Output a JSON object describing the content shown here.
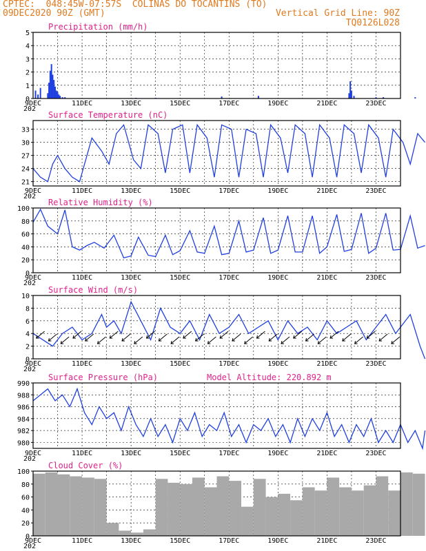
{
  "header": {
    "line1": "CPTEC:  048:45W-07:57S  COLINAS DO TOCANTINS (TO)",
    "line2_left": "09DEC2020 90Z (GMT)",
    "line2_right": "Vertical Grid Line: 90Z",
    "line3_right": "TQ0126L028"
  },
  "x_axis": {
    "tick_labels": [
      "9DEC",
      "11DEC",
      "13DEC",
      "15DEC",
      "17DEC",
      "19DEC",
      "21DEC",
      "23DEC"
    ],
    "year_fragment": "202"
  },
  "colors": {
    "title": "#e0218a",
    "header": "#e07a1f",
    "line": "#1f3fe0",
    "cloud": "#a9a9a9",
    "grid": "#000000"
  },
  "chart_data": [
    {
      "type": "bar",
      "title": "Precipitation (mm/h)",
      "ylim": [
        0,
        5
      ],
      "yticks": [
        0,
        1,
        2,
        3,
        4,
        5
      ],
      "x_units": "days since 9DEC (hourly bars)",
      "x": [
        0.1,
        0.2,
        0.3,
        0.6,
        0.65,
        0.7,
        0.75,
        0.8,
        0.85,
        0.9,
        0.95,
        1.0,
        1.05,
        1.1,
        1.2,
        1.3,
        4.2,
        5.0,
        7.7,
        9.2,
        12.9,
        12.95,
        13.0,
        13.1,
        14.0,
        14.3,
        15.6
      ],
      "values": [
        0.6,
        0.3,
        0.8,
        0.4,
        1.2,
        2.1,
        2.6,
        1.8,
        1.4,
        0.9,
        0.6,
        0.5,
        0.3,
        0.2,
        0.1,
        0.1,
        0.05,
        0.05,
        0.15,
        0.2,
        0.4,
        1.3,
        0.6,
        0.2,
        0.1,
        0.1,
        0.1
      ]
    },
    {
      "type": "line",
      "title": "Surface Temperature (nC)",
      "ylim": [
        20,
        35
      ],
      "yticks": [
        21,
        24,
        27,
        30,
        33
      ],
      "x": [
        0,
        0.3,
        0.6,
        0.8,
        1.0,
        1.3,
        1.6,
        1.9,
        2.1,
        2.4,
        2.8,
        3.1,
        3.4,
        3.7,
        4.1,
        4.4,
        4.7,
        5.1,
        5.4,
        5.7,
        6.1,
        6.4,
        6.7,
        7.1,
        7.4,
        7.7,
        8.1,
        8.4,
        8.7,
        9.1,
        9.4,
        9.7,
        10.1,
        10.4,
        10.7,
        11.1,
        11.4,
        11.7,
        12.1,
        12.4,
        12.7,
        13.1,
        13.4,
        13.7,
        14.1,
        14.4,
        14.7,
        15.1,
        15.4,
        15.7,
        16.0
      ],
      "values": [
        24,
        22,
        21,
        25,
        27,
        24,
        22,
        21,
        25,
        31,
        28,
        25,
        32,
        34,
        26,
        24,
        34,
        32,
        23,
        33,
        34,
        23,
        34,
        31,
        22,
        34,
        33,
        22,
        33,
        32,
        22,
        34,
        31,
        23,
        34,
        32,
        22,
        34,
        31,
        22,
        34,
        32,
        23,
        34,
        31,
        22,
        33,
        30,
        25,
        32,
        30
      ]
    },
    {
      "type": "line",
      "title": "Relative Humidity (%)",
      "ylim": [
        0,
        100
      ],
      "yticks": [
        0,
        20,
        40,
        60,
        80,
        100
      ],
      "x": [
        0,
        0.3,
        0.6,
        1.0,
        1.3,
        1.6,
        1.9,
        2.2,
        2.5,
        2.9,
        3.3,
        3.7,
        4.0,
        4.3,
        4.7,
        5.0,
        5.4,
        5.7,
        6.0,
        6.4,
        6.7,
        7.0,
        7.4,
        7.7,
        8.0,
        8.4,
        8.7,
        9.0,
        9.4,
        9.7,
        10.0,
        10.4,
        10.7,
        11.0,
        11.4,
        11.7,
        12.0,
        12.4,
        12.7,
        13.0,
        13.4,
        13.7,
        14.0,
        14.4,
        14.7,
        15.0,
        15.4,
        15.7,
        16.0
      ],
      "values": [
        78,
        98,
        72,
        60,
        97,
        40,
        35,
        42,
        47,
        38,
        58,
        23,
        26,
        55,
        27,
        25,
        58,
        28,
        34,
        65,
        32,
        30,
        72,
        28,
        30,
        80,
        32,
        35,
        85,
        30,
        35,
        88,
        32,
        32,
        88,
        30,
        40,
        90,
        33,
        36,
        92,
        30,
        38,
        92,
        35,
        36,
        88,
        38,
        42
      ]
    },
    {
      "type": "line",
      "title": "Surface Wind (m/s)",
      "ylim": [
        0,
        10
      ],
      "yticks": [
        0,
        2,
        4,
        6,
        8,
        10
      ],
      "x": [
        0,
        0.4,
        0.8,
        1.2,
        1.6,
        2.0,
        2.4,
        2.8,
        3.0,
        3.3,
        3.6,
        4.0,
        4.4,
        4.8,
        5.2,
        5.6,
        6.0,
        6.4,
        6.8,
        7.2,
        7.6,
        8.0,
        8.4,
        8.8,
        9.2,
        9.6,
        10.0,
        10.4,
        10.8,
        11.2,
        11.6,
        12.0,
        12.4,
        12.8,
        13.2,
        13.6,
        14.0,
        14.4,
        14.8,
        15.0,
        15.4,
        15.8,
        16.0
      ],
      "values": [
        4,
        3,
        2,
        4,
        5,
        3,
        4,
        7,
        5,
        6,
        4,
        9,
        6,
        3,
        8,
        5,
        4,
        6,
        3,
        7,
        4,
        5,
        7,
        4,
        5,
        6,
        3,
        6,
        4,
        5,
        3,
        6,
        4,
        5,
        6,
        3,
        5,
        7,
        4,
        5,
        7,
        2,
        0
      ]
    },
    {
      "type": "line",
      "title": "Surface Pressure (hPa)",
      "annotation": "Model Altitude: 220.892 m",
      "ylim": [
        979,
        990
      ],
      "yticks": [
        980,
        982,
        984,
        986,
        988,
        990
      ],
      "x": [
        0,
        0.3,
        0.6,
        0.9,
        1.2,
        1.5,
        1.8,
        2.1,
        2.4,
        2.7,
        3.0,
        3.3,
        3.6,
        3.9,
        4.2,
        4.5,
        4.8,
        5.1,
        5.4,
        5.7,
        6.0,
        6.3,
        6.6,
        6.9,
        7.2,
        7.5,
        7.8,
        8.1,
        8.4,
        8.7,
        9.0,
        9.3,
        9.6,
        9.9,
        10.2,
        10.5,
        10.8,
        11.1,
        11.4,
        11.7,
        12.0,
        12.3,
        12.6,
        12.9,
        13.2,
        13.5,
        13.8,
        14.1,
        14.4,
        14.7,
        15.0,
        15.3,
        15.6,
        15.9,
        16.0
      ],
      "values": [
        987,
        988,
        989,
        987,
        988,
        986,
        989,
        985,
        983,
        986,
        984,
        985,
        982,
        986,
        983,
        981,
        984,
        981,
        983,
        980,
        984,
        982,
        985,
        981,
        983,
        982,
        985,
        981,
        983,
        980,
        983,
        982,
        984,
        981,
        983,
        980,
        984,
        981,
        984,
        982,
        985,
        981,
        983,
        980,
        983,
        981,
        984,
        980,
        982,
        980,
        983,
        980,
        982,
        979,
        982
      ]
    },
    {
      "type": "bar",
      "title": "Cloud Cover (%)",
      "ylim": [
        0,
        100
      ],
      "yticks": [
        0,
        20,
        40,
        60,
        80,
        100
      ],
      "x": [
        0,
        0.5,
        1.0,
        1.5,
        2.0,
        2.5,
        3.0,
        3.5,
        4.0,
        4.5,
        5.0,
        5.5,
        6.0,
        6.5,
        7.0,
        7.5,
        8.0,
        8.5,
        9.0,
        9.5,
        10.0,
        10.5,
        11.0,
        11.5,
        12.0,
        12.5,
        13.0,
        13.5,
        14.0,
        14.5,
        15.0,
        15.5
      ],
      "values": [
        96,
        98,
        95,
        92,
        90,
        88,
        20,
        8,
        5,
        10,
        88,
        82,
        80,
        90,
        75,
        92,
        85,
        45,
        88,
        60,
        65,
        55,
        75,
        70,
        90,
        75,
        70,
        78,
        92,
        70,
        98,
        96
      ]
    }
  ]
}
